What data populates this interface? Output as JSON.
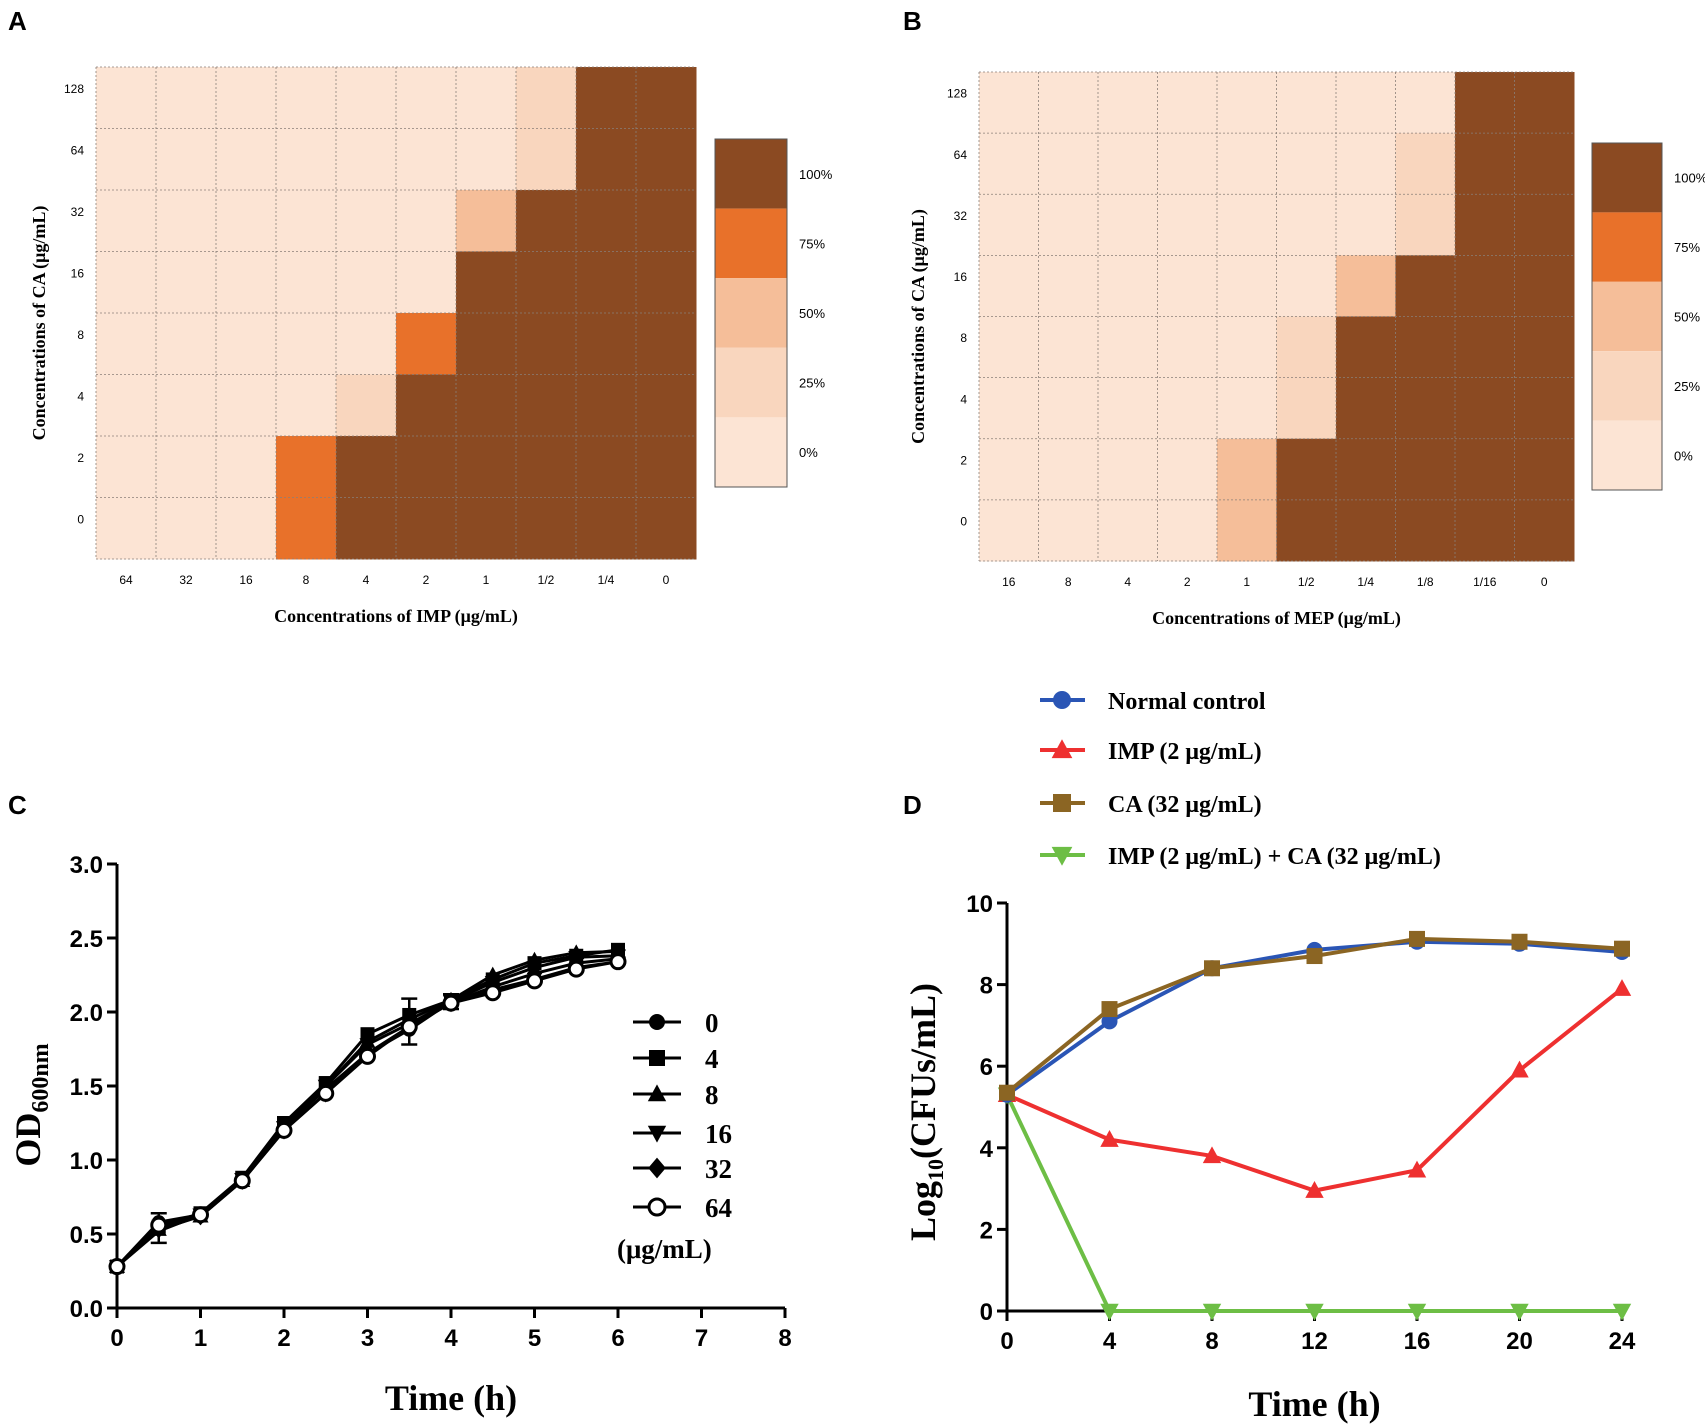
{
  "panels": {
    "a": "A",
    "b": "B",
    "c": "C",
    "d": "D"
  },
  "chart_data": [
    {
      "id": "A",
      "type": "heatmap",
      "xlabel": "Concentrations of IMP (μg/mL)",
      "ylabel": "Concentrations of CA (μg/mL)",
      "x_categories": [
        "64",
        "32",
        "16",
        "8",
        "4",
        "2",
        "1",
        "1/2",
        "1/4",
        "0"
      ],
      "y_categories": [
        "128",
        "64",
        "32",
        "16",
        "8",
        "4",
        "2",
        "0"
      ],
      "values_percent": [
        [
          0,
          0,
          0,
          0,
          0,
          0,
          0,
          25,
          100,
          100
        ],
        [
          0,
          0,
          0,
          0,
          0,
          0,
          0,
          25,
          100,
          100
        ],
        [
          0,
          0,
          0,
          0,
          0,
          0,
          50,
          100,
          100,
          100
        ],
        [
          0,
          0,
          0,
          0,
          0,
          0,
          100,
          100,
          100,
          100
        ],
        [
          0,
          0,
          0,
          0,
          0,
          75,
          100,
          100,
          100,
          100
        ],
        [
          0,
          0,
          0,
          0,
          25,
          100,
          100,
          100,
          100,
          100
        ],
        [
          0,
          0,
          0,
          75,
          100,
          100,
          100,
          100,
          100,
          100
        ],
        [
          0,
          0,
          0,
          75,
          100,
          100,
          100,
          100,
          100,
          100
        ]
      ],
      "legend": {
        "levels": [
          "100%",
          "75%",
          "50%",
          "25%",
          "0%"
        ],
        "colors": [
          "#8B4A22",
          "#E8712A",
          "#F5BE99",
          "#F9D6BE",
          "#FCE4D4"
        ]
      }
    },
    {
      "id": "B",
      "type": "heatmap",
      "xlabel": "Concentrations of MEP (μg/mL)",
      "ylabel": "Concentrations of CA (μg/mL)",
      "x_categories": [
        "16",
        "8",
        "4",
        "2",
        "1",
        "1/2",
        "1/4",
        "1/8",
        "1/16",
        "0"
      ],
      "y_categories": [
        "128",
        "64",
        "32",
        "16",
        "8",
        "4",
        "2",
        "0"
      ],
      "values_percent": [
        [
          0,
          0,
          0,
          0,
          0,
          0,
          0,
          0,
          100,
          100
        ],
        [
          0,
          0,
          0,
          0,
          0,
          0,
          0,
          25,
          100,
          100
        ],
        [
          0,
          0,
          0,
          0,
          0,
          0,
          0,
          25,
          100,
          100
        ],
        [
          0,
          0,
          0,
          0,
          0,
          0,
          50,
          100,
          100,
          100
        ],
        [
          0,
          0,
          0,
          0,
          0,
          25,
          100,
          100,
          100,
          100
        ],
        [
          0,
          0,
          0,
          0,
          0,
          25,
          100,
          100,
          100,
          100
        ],
        [
          0,
          0,
          0,
          0,
          50,
          100,
          100,
          100,
          100,
          100
        ],
        [
          0,
          0,
          0,
          0,
          50,
          100,
          100,
          100,
          100,
          100
        ]
      ],
      "legend": {
        "levels": [
          "100%",
          "75%",
          "50%",
          "25%",
          "0%"
        ],
        "colors": [
          "#8B4A22",
          "#E8712A",
          "#F5BE99",
          "#F9D6BE",
          "#FCE4D4"
        ]
      }
    },
    {
      "id": "C",
      "type": "line",
      "xlabel": "Time (h)",
      "ylabel_main": "OD",
      "ylabel_sub": "600nm",
      "xlim": [
        0,
        8
      ],
      "ylim": [
        0,
        3.0
      ],
      "x_ticks": [
        "0",
        "1",
        "2",
        "3",
        "4",
        "5",
        "6",
        "7",
        "8"
      ],
      "y_ticks": [
        "0.0",
        "0.5",
        "1.0",
        "1.5",
        "2.0",
        "2.5",
        "3.0"
      ],
      "x": [
        0,
        0.5,
        1,
        1.5,
        2,
        2.5,
        3,
        3.5,
        4,
        4.5,
        5,
        5.5,
        6
      ],
      "series": [
        {
          "name": "0",
          "marker": "circle",
          "values": [
            0.28,
            0.58,
            0.63,
            0.87,
            1.22,
            1.48,
            1.72,
            1.88,
            2.07,
            2.15,
            2.22,
            2.3,
            2.34
          ]
        },
        {
          "name": "4",
          "marker": "square",
          "values": [
            0.28,
            0.55,
            0.64,
            0.88,
            1.25,
            1.52,
            1.85,
            1.98,
            2.08,
            2.22,
            2.33,
            2.38,
            2.42
          ]
        },
        {
          "name": "8",
          "marker": "triangle-up",
          "values": [
            0.28,
            0.53,
            0.62,
            0.86,
            1.23,
            1.5,
            1.8,
            1.95,
            2.08,
            2.25,
            2.35,
            2.4,
            2.41
          ]
        },
        {
          "name": "16",
          "marker": "triangle-down",
          "values": [
            0.28,
            0.52,
            0.63,
            0.87,
            1.22,
            1.5,
            1.78,
            1.92,
            2.07,
            2.2,
            2.3,
            2.37,
            2.38
          ]
        },
        {
          "name": "32",
          "marker": "diamond",
          "values": [
            0.28,
            0.55,
            0.62,
            0.86,
            1.2,
            1.45,
            1.72,
            1.9,
            2.06,
            2.17,
            2.26,
            2.33,
            2.36
          ]
        },
        {
          "name": "64",
          "marker": "open-circle",
          "values": [
            0.28,
            0.56,
            0.63,
            0.86,
            1.2,
            1.45,
            1.7,
            1.9,
            2.06,
            2.13,
            2.21,
            2.29,
            2.34
          ]
        }
      ],
      "legend_unit": "(μg/mL)"
    },
    {
      "id": "D",
      "type": "line",
      "xlabel": "Time (h)",
      "ylabel_main": "Log",
      "ylabel_sub": "10",
      "ylabel_rest": "(CFUs/mL)",
      "xlim": [
        0,
        24
      ],
      "ylim": [
        0,
        10
      ],
      "x_ticks": [
        "0",
        "4",
        "8",
        "12",
        "16",
        "20",
        "24"
      ],
      "y_ticks": [
        "0",
        "2",
        "4",
        "6",
        "8",
        "10"
      ],
      "x": [
        0,
        4,
        8,
        12,
        16,
        20,
        24
      ],
      "series": [
        {
          "name": "Normal control",
          "color": "#2A55B5",
          "marker": "circle",
          "values": [
            5.3,
            7.1,
            8.4,
            8.85,
            9.05,
            9.0,
            8.8
          ]
        },
        {
          "name": "IMP (2 μg/mL)",
          "color": "#EE3030",
          "marker": "triangle-up",
          "values": [
            5.3,
            4.2,
            3.8,
            2.95,
            3.45,
            5.9,
            7.9
          ]
        },
        {
          "name": "CA (32 μg/mL)",
          "color": "#8B6523",
          "marker": "square",
          "values": [
            5.35,
            7.4,
            8.4,
            8.7,
            9.12,
            9.05,
            8.88
          ]
        },
        {
          "name": "IMP (2 μg/mL) + CA (32 μg/mL)",
          "color": "#6DBE45",
          "marker": "triangle-down",
          "values": [
            5.3,
            0.0,
            0.0,
            0.0,
            0.0,
            0.0,
            0.0
          ]
        }
      ]
    }
  ]
}
